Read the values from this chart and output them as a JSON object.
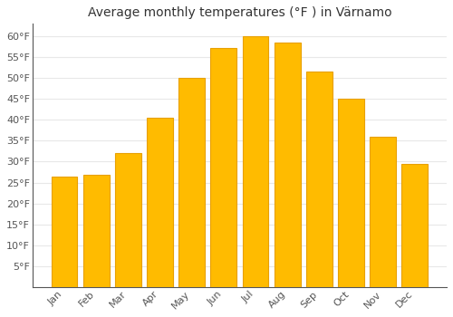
{
  "title": "Average monthly temperatures (°F ) in Värnamo",
  "categories": [
    "Jan",
    "Feb",
    "Mar",
    "Apr",
    "May",
    "Jun",
    "Jul",
    "Aug",
    "Sep",
    "Oct",
    "Nov",
    "Dec"
  ],
  "values": [
    26.5,
    26.8,
    32.0,
    40.5,
    50.0,
    57.2,
    60.0,
    58.5,
    51.5,
    45.0,
    36.0,
    29.5
  ],
  "bar_color": "#FFBB00",
  "bar_edge_color": "#E8A000",
  "background_color": "#FFFFFF",
  "grid_color": "#E8E8E8",
  "ylim": [
    0,
    63
  ],
  "yticks": [
    5,
    10,
    15,
    20,
    25,
    30,
    35,
    40,
    45,
    50,
    55,
    60
  ],
  "title_fontsize": 10,
  "tick_fontsize": 8,
  "bar_width": 0.82
}
